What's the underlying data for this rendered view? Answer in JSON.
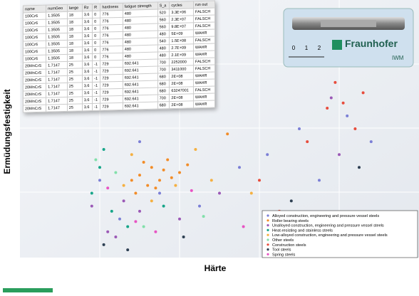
{
  "chart_data": {
    "type": "scatter",
    "x_label": "Härte",
    "y_label": "Ermüdungsfestigkeit",
    "xlim": [
      0,
      100
    ],
    "ylim": [
      0,
      100
    ],
    "series": [
      {
        "name": "Alloyed construction, engineering and pressure vessel steels",
        "color": "#7b7fd6",
        "x": [
          20,
          25,
          30,
          35,
          45,
          55,
          62,
          70,
          75,
          82,
          88
        ],
        "values": [
          30,
          15,
          45,
          25,
          20,
          35,
          40,
          50,
          30,
          55,
          45
        ]
      },
      {
        "name": "Roller bearing steels",
        "color": "#f28c28",
        "x": [
          28,
          30,
          32,
          33,
          35,
          36,
          38,
          34,
          31,
          37,
          40,
          29,
          42,
          52
        ],
        "values": [
          30,
          32,
          28,
          35,
          30,
          34,
          31,
          27,
          37,
          38,
          33,
          25,
          36,
          48
        ]
      },
      {
        "name": "Unalloyed construction, engineering and pressure vessel steels",
        "color": "#9b59b6",
        "x": [
          18,
          22,
          26,
          30,
          24,
          40,
          50,
          78,
          80
        ],
        "values": [
          20,
          10,
          22,
          18,
          8,
          15,
          25,
          62,
          40
        ]
      },
      {
        "name": "Heat-resisting and stainless steels",
        "color": "#17a589",
        "x": [
          18,
          20,
          21,
          23,
          27,
          36
        ],
        "values": [
          25,
          35,
          42,
          18,
          12,
          20
        ]
      },
      {
        "name": "Low-alloyed construction, engineering and pressure vessel steels",
        "color": "#f5b041",
        "x": [
          26,
          28,
          33,
          39,
          44,
          48,
          58
        ],
        "values": [
          28,
          40,
          22,
          28,
          42,
          30,
          25
        ]
      },
      {
        "name": "Other steels",
        "color": "#82e0aa",
        "x": [
          19,
          24,
          31,
          46
        ],
        "values": [
          38,
          33,
          12,
          16
        ]
      },
      {
        "name": "Construction steels",
        "color": "#e74c3c",
        "x": [
          60,
          65,
          72,
          77,
          79,
          81,
          84,
          86
        ],
        "values": [
          30,
          18,
          45,
          58,
          68,
          60,
          50,
          64
        ]
      },
      {
        "name": "Tool steels",
        "color": "#2e4053",
        "x": [
          21,
          27,
          41,
          68,
          85
        ],
        "values": [
          5,
          3,
          8,
          22,
          35
        ]
      },
      {
        "name": "Spring steels",
        "color": "#e754c3",
        "x": [
          22,
          29,
          34,
          43,
          56
        ],
        "values": [
          27,
          14,
          10,
          26,
          12
        ]
      }
    ]
  },
  "inset_table": {
    "header": [
      "name",
      "numGeo",
      "lange",
      "Rz",
      "R",
      "hardness",
      "fatigue strength",
      "S_a",
      "cycles",
      "run out"
    ],
    "rows": [
      [
        "100Cr6",
        "1.3505",
        "18",
        "3.6",
        "0",
        "776",
        "480",
        "520",
        "3.3E+06",
        "FALSCH"
      ],
      [
        "100Cr6",
        "1.3505",
        "18",
        "3.6",
        "0",
        "776",
        "480",
        "560",
        "2.3E+07",
        "FALSCH"
      ],
      [
        "100Cr6",
        "1.3505",
        "18",
        "3.6",
        "0",
        "776",
        "480",
        "560",
        "9.8E+07",
        "FALSCH"
      ],
      [
        "100Cr6",
        "1.3505",
        "18",
        "3.6",
        "0",
        "776",
        "480",
        "480",
        "5E+09",
        "WAHR"
      ],
      [
        "100Cr6",
        "1.3505",
        "18",
        "3.6",
        "0",
        "776",
        "480",
        "540",
        "1.5E+08",
        "FALSCH"
      ],
      [
        "100Cr6",
        "1.3505",
        "18",
        "3.6",
        "0",
        "776",
        "480",
        "480",
        "2.7E+09",
        "WAHR"
      ],
      [
        "100Cr6",
        "1.3505",
        "18",
        "3.6",
        "0",
        "776",
        "480",
        "480",
        "2.1E+09",
        "WAHR"
      ],
      [
        "20MnCrS",
        "1.7147",
        "25",
        "3.6",
        "-1",
        "729",
        "692.641",
        "700",
        "2252000",
        "FALSCH"
      ],
      [
        "20MnCrS",
        "1.7147",
        "25",
        "3.6",
        "-1",
        "729",
        "692.641",
        "700",
        "3411000",
        "FALSCH"
      ],
      [
        "20MnCrS",
        "1.7147",
        "25",
        "3.6",
        "-1",
        "729",
        "692.641",
        "680",
        "2E+08",
        "WAHR"
      ],
      [
        "20MnCrS",
        "1.7147",
        "25",
        "3.6",
        "-1",
        "729",
        "692.641",
        "680",
        "2E+08",
        "WAHR"
      ],
      [
        "20MnCrS",
        "1.7147",
        "25",
        "3.6",
        "-1",
        "729",
        "692.641",
        "680",
        "63247001",
        "FALSCH"
      ],
      [
        "20MnCrS",
        "1.7147",
        "25",
        "3.6",
        "-1",
        "729",
        "692.641",
        "700",
        "2E+08",
        "WAHR"
      ],
      [
        "20MnCrS",
        "1.7147",
        "25",
        "3.6",
        "-1",
        "729",
        "692.641",
        "680",
        "2E+08",
        "WAHR"
      ]
    ]
  },
  "logo": {
    "name": "Fraunhofer",
    "unit": "IWM",
    "scale": [
      "0",
      "1",
      "2"
    ]
  }
}
